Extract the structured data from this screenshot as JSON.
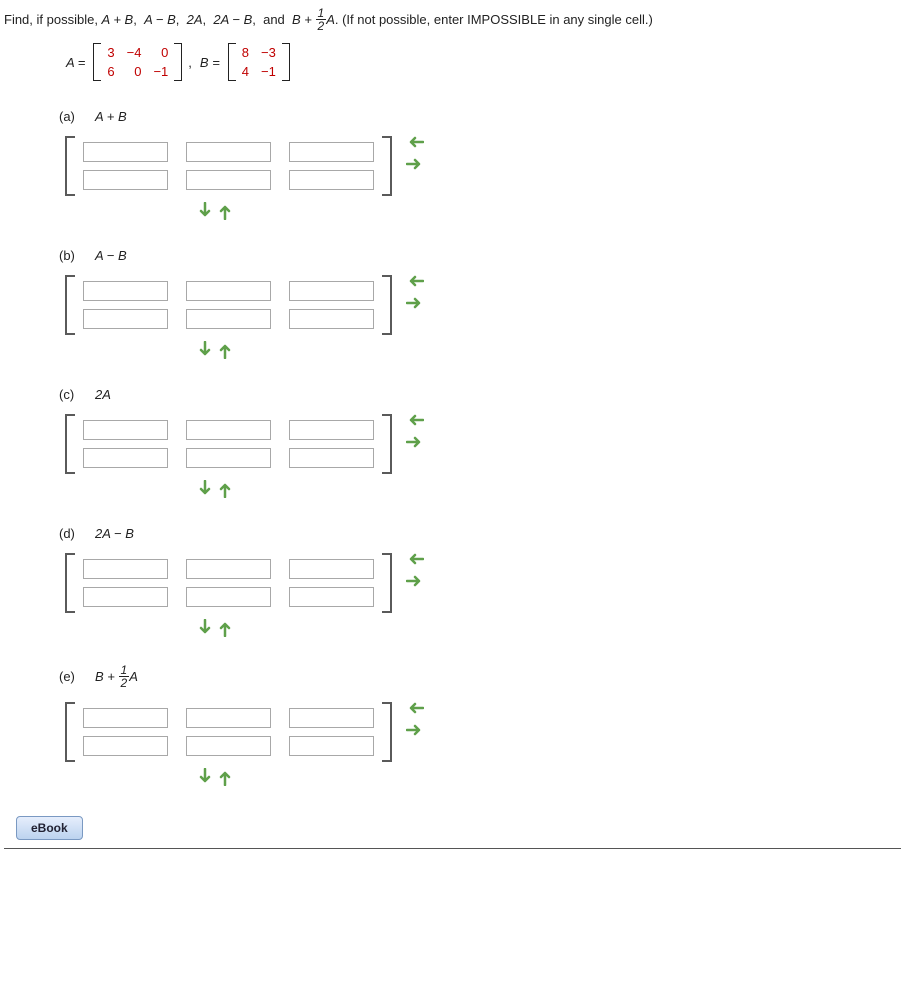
{
  "prompt": {
    "prefix": "Find, if possible, ",
    "t1": "A + B",
    "t2": "A − B",
    "t3": "2A",
    "t4": "2A − B",
    "t5_prefix": "B + ",
    "t5_frac_num": "1",
    "t5_frac_den": "2",
    "t5_suffix": "A",
    "note": ". (If not possible, enter IMPOSSIBLE in any single cell.)"
  },
  "matrixA": {
    "label": "A =",
    "rows": [
      [
        "3",
        "−4",
        "0"
      ],
      [
        "6",
        "0",
        "−1"
      ]
    ]
  },
  "matrixB": {
    "label": "B =",
    "rows": [
      [
        "8",
        "−3"
      ],
      [
        "4",
        "−1"
      ]
    ]
  },
  "comma": ",",
  "parts": [
    {
      "letter": "(a)",
      "expr_plain": "A + B",
      "has_frac": false
    },
    {
      "letter": "(b)",
      "expr_plain": "A − B",
      "has_frac": false
    },
    {
      "letter": "(c)",
      "expr_plain": "2A",
      "has_frac": false
    },
    {
      "letter": "(d)",
      "expr_plain": "2A − B",
      "has_frac": false
    },
    {
      "letter": "(e)",
      "expr_prefix": "B + ",
      "frac_num": "1",
      "frac_den": "2",
      "expr_suffix": "A",
      "has_frac": true
    }
  ],
  "input_grid": {
    "rows": 2,
    "cols": 3
  },
  "arrow_color": "#5fa04a",
  "ebook_label": "eBook"
}
